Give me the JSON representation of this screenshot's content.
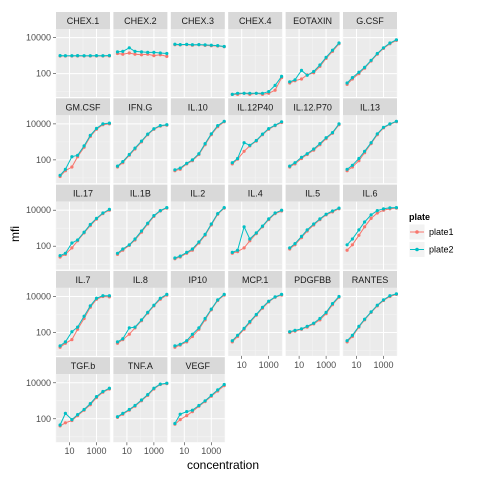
{
  "chart_data": {
    "type": "line",
    "facet_layout": {
      "ncol": 6,
      "nrow": 5
    },
    "xlabel": "concentration",
    "ylabel": "mfi",
    "x_scale": "log10",
    "y_scale": "log10",
    "xlim": [
      1,
      10000
    ],
    "ylim": [
      5,
      30000
    ],
    "x_ticks": [
      10,
      1000
    ],
    "x_tick_labels": [
      "10",
      "1000"
    ],
    "y_ticks": [
      100,
      10000
    ],
    "y_tick_labels": [
      "100",
      "10000"
    ],
    "x": [
      2,
      5,
      15,
      40,
      120,
      350,
      1000,
      3000,
      9000
    ],
    "legend": {
      "title": "plate",
      "entries": [
        {
          "label": "plate1",
          "color": "#F8766D"
        },
        {
          "label": "plate2",
          "color": "#00BFC4"
        }
      ]
    },
    "panels": [
      {
        "name": "CHEX.1",
        "series": [
          {
            "name": "plate1",
            "values": [
              950,
              950,
              950,
              950,
              950,
              950,
              950,
              950,
              950
            ]
          },
          {
            "name": "plate2",
            "values": [
              1000,
              990,
              985,
              1000,
              990,
              985,
              995,
              990,
              1010
            ]
          }
        ]
      },
      {
        "name": "CHEX.2",
        "series": [
          {
            "name": "plate1",
            "values": [
              1300,
              1200,
              1400,
              1200,
              1100,
              1200,
              1000,
              1100,
              900
            ]
          },
          {
            "name": "plate2",
            "values": [
              1600,
              1700,
              2700,
              1700,
              1600,
              1500,
              1500,
              1400,
              1300
            ]
          }
        ]
      },
      {
        "name": "CHEX.3",
        "series": [
          {
            "name": "plate1",
            "values": [
              4000,
              3900,
              4100,
              3800,
              4000,
              3700,
              3500,
              3400,
              3100
            ]
          },
          {
            "name": "plate2",
            "values": [
              4300,
              4100,
              4200,
              4000,
              4100,
              3900,
              3800,
              3600,
              3200
            ]
          }
        ]
      },
      {
        "name": "CHEX.4",
        "series": [
          {
            "name": "plate1",
            "values": [
              7,
              7,
              8,
              7,
              8,
              7,
              8,
              12,
              60
            ]
          },
          {
            "name": "plate2",
            "values": [
              7,
              8,
              8,
              8,
              8,
              8,
              10,
              22,
              70
            ]
          }
        ]
      },
      {
        "name": "EOTAXIN",
        "series": [
          {
            "name": "plate1",
            "values": [
              30,
              40,
              50,
              85,
              110,
              250,
              700,
              1700,
              4500
            ]
          },
          {
            "name": "plate2",
            "values": [
              35,
              45,
              150,
              80,
              130,
              300,
              800,
              2000,
              5000
            ]
          }
        ]
      },
      {
        "name": "G.CSF",
        "series": [
          {
            "name": "plate1",
            "values": [
              25,
              50,
              100,
              200,
              500,
              1200,
              2500,
              4500,
              7000
            ]
          },
          {
            "name": "plate2",
            "values": [
              30,
              60,
              120,
              220,
              550,
              1300,
              2700,
              5000,
              7500
            ]
          }
        ]
      },
      {
        "name": "GM.CSF",
        "series": [
          {
            "name": "plate1",
            "values": [
              12,
              25,
              40,
              150,
              500,
              2000,
              5000,
              9000,
              10000
            ]
          },
          {
            "name": "plate2",
            "values": [
              14,
              30,
              150,
              180,
              600,
              2300,
              5600,
              10000,
              11000
            ]
          }
        ]
      },
      {
        "name": "IFN.G",
        "series": [
          {
            "name": "plate1",
            "values": [
              40,
              70,
              180,
              400,
              1000,
              2500,
              5000,
              7500,
              8500
            ]
          },
          {
            "name": "plate2",
            "values": [
              45,
              80,
              200,
              450,
              1100,
              2700,
              5400,
              8000,
              9000
            ]
          }
        ]
      },
      {
        "name": "IL.10",
        "series": [
          {
            "name": "plate1",
            "values": [
              25,
              30,
              60,
              90,
              200,
              700,
              2500,
              7000,
              13000
            ]
          },
          {
            "name": "plate2",
            "values": [
              28,
              35,
              65,
              100,
              220,
              800,
              2800,
              8000,
              14000
            ]
          }
        ]
      },
      {
        "name": "IL.12P40",
        "series": [
          {
            "name": "plate1",
            "values": [
              60,
              110,
              300,
              600,
              1100,
              2500,
              5000,
              8000,
              12000
            ]
          },
          {
            "name": "plate2",
            "values": [
              70,
              120,
              900,
              650,
              1200,
              2700,
              5500,
              8500,
              13000
            ]
          }
        ]
      },
      {
        "name": "IL.12.P70",
        "series": [
          {
            "name": "plate1",
            "values": [
              40,
              60,
              120,
              200,
              350,
              700,
              1500,
              3000,
              9000
            ]
          },
          {
            "name": "plate2",
            "values": [
              45,
              70,
              140,
              220,
              400,
              800,
              1700,
              3300,
              10000
            ]
          }
        ]
      },
      {
        "name": "IL.13",
        "series": [
          {
            "name": "plate1",
            "values": [
              25,
              40,
              90,
              250,
              800,
              2500,
              6000,
              9500,
              13000
            ]
          },
          {
            "name": "plate2",
            "values": [
              30,
              50,
              120,
              300,
              900,
              2800,
              6500,
              10000,
              14000
            ]
          }
        ]
      },
      {
        "name": "IL.17",
        "series": [
          {
            "name": "plate1",
            "values": [
              25,
              35,
              80,
              200,
              550,
              1400,
              3200,
              6500,
              10000
            ]
          },
          {
            "name": "plate2",
            "values": [
              30,
              40,
              150,
              220,
              600,
              1600,
              3500,
              7000,
              11000
            ]
          }
        ]
      },
      {
        "name": "IL.1B",
        "series": [
          {
            "name": "plate1",
            "values": [
              35,
              60,
              110,
              220,
              600,
              1700,
              4500,
              9000,
              13000
            ]
          },
          {
            "name": "plate2",
            "values": [
              40,
              70,
              120,
              250,
              700,
              1900,
              5000,
              9500,
              14000
            ]
          }
        ]
      },
      {
        "name": "IL.2",
        "series": [
          {
            "name": "plate1",
            "values": [
              20,
              25,
              40,
              60,
              150,
              400,
              1500,
              6000,
              13000
            ]
          },
          {
            "name": "plate2",
            "values": [
              22,
              28,
              45,
              70,
              170,
              450,
              1700,
              6500,
              14000
            ]
          }
        ]
      },
      {
        "name": "IL.4",
        "series": [
          {
            "name": "plate1",
            "values": [
              40,
              50,
              80,
              200,
              500,
              1200,
              3000,
              6500,
              9000
            ]
          },
          {
            "name": "plate2",
            "values": [
              45,
              60,
              1200,
              250,
              550,
              1300,
              3300,
              7000,
              10000
            ]
          }
        ]
      },
      {
        "name": "IL.5",
        "series": [
          {
            "name": "plate1",
            "values": [
              70,
              120,
              300,
              700,
              1500,
              3000,
              5500,
              8000,
              12000
            ]
          },
          {
            "name": "plate2",
            "values": [
              80,
              140,
              350,
              800,
              1700,
              3300,
              6000,
              9000,
              13000
            ]
          }
        ]
      },
      {
        "name": "IL.6",
        "series": [
          {
            "name": "plate1",
            "values": [
              60,
              120,
              400,
              1200,
              3500,
              7000,
              10000,
              12000,
              13000
            ]
          },
          {
            "name": "plate2",
            "values": [
              120,
              250,
              800,
              2200,
              5500,
              9500,
              12000,
              13500,
              14000
            ]
          }
        ]
      },
      {
        "name": "IL.7",
        "series": [
          {
            "name": "plate1",
            "values": [
              15,
              25,
              40,
              150,
              600,
              2500,
              7000,
              10000,
              9500
            ]
          },
          {
            "name": "plate2",
            "values": [
              18,
              30,
              110,
              200,
              800,
              3000,
              8000,
              11000,
              11000
            ]
          }
        ]
      },
      {
        "name": "IL.8",
        "series": [
          {
            "name": "plate1",
            "values": [
              25,
              40,
              80,
              180,
              450,
              1200,
              3000,
              7000,
              12000
            ]
          },
          {
            "name": "plate2",
            "values": [
              30,
              45,
              180,
              200,
              500,
              1300,
              3300,
              8000,
              13000
            ]
          }
        ]
      },
      {
        "name": "IP10",
        "series": [
          {
            "name": "plate1",
            "values": [
              15,
              20,
              30,
              60,
              150,
              500,
              1800,
              6000,
              12000
            ]
          },
          {
            "name": "plate2",
            "values": [
              18,
              22,
              35,
              80,
              180,
              600,
              2000,
              6500,
              13000
            ]
          }
        ]
      },
      {
        "name": "MCP.1",
        "series": [
          {
            "name": "plate1",
            "values": [
              30,
              60,
              150,
              350,
              900,
              2200,
              5000,
              9000,
              12000
            ]
          },
          {
            "name": "plate2",
            "values": [
              35,
              70,
              170,
              400,
              1000,
              2500,
              5500,
              9500,
              13000
            ]
          }
        ]
      },
      {
        "name": "PDGFBB",
        "series": [
          {
            "name": "plate1",
            "values": [
              100,
              120,
              150,
              200,
              300,
              500,
              1100,
              3500,
              9000
            ]
          },
          {
            "name": "plate2",
            "values": [
              110,
              130,
              160,
              220,
              330,
              600,
              1300,
              4000,
              10000
            ]
          }
        ]
      },
      {
        "name": "RANTES",
        "series": [
          {
            "name": "plate1",
            "values": [
              30,
              60,
              200,
              500,
              1300,
              3000,
              6000,
              10000,
              13000
            ]
          },
          {
            "name": "plate2",
            "values": [
              35,
              70,
              220,
              550,
              1400,
              3300,
              6500,
              11000,
              14000
            ]
          }
        ]
      },
      {
        "name": "TGF.b",
        "series": [
          {
            "name": "plate1",
            "values": [
              40,
              60,
              80,
              150,
              300,
              600,
              1500,
              3000,
              4500
            ]
          },
          {
            "name": "plate2",
            "values": [
              45,
              200,
              90,
              170,
              330,
              700,
              1700,
              3300,
              5000
            ]
          }
        ]
      },
      {
        "name": "TNF.A",
        "series": [
          {
            "name": "plate1",
            "values": [
              120,
              180,
              300,
              500,
              1000,
              2000,
              4500,
              8000,
              9000
            ]
          },
          {
            "name": "plate2",
            "values": [
              130,
              200,
              330,
              550,
              1100,
              2200,
              5000,
              8500,
              9500
            ]
          }
        ]
      },
      {
        "name": "VEGF",
        "series": [
          {
            "name": "plate1",
            "values": [
              50,
              90,
              150,
              250,
              500,
              900,
              1800,
              3500,
              7000
            ]
          },
          {
            "name": "plate2",
            "values": [
              55,
              180,
              250,
              300,
              550,
              1000,
              2000,
              4000,
              8000
            ]
          }
        ]
      }
    ]
  }
}
